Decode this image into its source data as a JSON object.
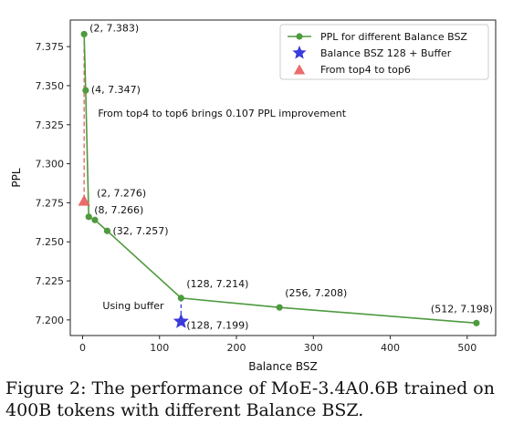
{
  "chart_data": {
    "type": "line",
    "xlabel": "Balance BSZ",
    "ylabel": "PPL",
    "xlim": [
      -16,
      537
    ],
    "ylim": [
      7.19,
      7.392
    ],
    "xticks": [
      0,
      100,
      200,
      300,
      400,
      500
    ],
    "xtick_labels": [
      "0",
      "100",
      "200",
      "300",
      "400",
      "500"
    ],
    "yticks": [
      7.2,
      7.225,
      7.25,
      7.275,
      7.3,
      7.325,
      7.35,
      7.375
    ],
    "ytick_labels": [
      "7.200",
      "7.225",
      "7.250",
      "7.275",
      "7.300",
      "7.325",
      "7.350",
      "7.375"
    ],
    "grid": false,
    "legend_position": "top-right",
    "colors": {
      "main": "#4e9a3e",
      "star": "#3b3bdb",
      "triangle": "#e85c5c",
      "star_link": "#3b3bdb",
      "triangle_link": "#e85c5c"
    },
    "series": [
      {
        "name": "PPL for different Balance BSZ",
        "marker": "circle",
        "x": [
          2,
          4,
          8,
          16,
          32,
          128,
          256,
          512
        ],
        "y": [
          7.383,
          7.347,
          7.266,
          7.264,
          7.257,
          7.214,
          7.208,
          7.198
        ],
        "point_labels": [
          "(2, 7.383)",
          "(4, 7.347)",
          "(8, 7.266)",
          "",
          "(32, 7.257)",
          "(128, 7.214)",
          "(256, 7.208)",
          "(512, 7.198)"
        ]
      },
      {
        "name": "Balance BSZ 128 + Buffer",
        "marker": "star",
        "x": [
          128
        ],
        "y": [
          7.199
        ],
        "point_labels": [
          "(128, 7.199)"
        ]
      },
      {
        "name": "From top4 to top6",
        "marker": "triangle",
        "x": [
          2
        ],
        "y": [
          7.276
        ],
        "point_labels": [
          "(2, 7.276)"
        ]
      }
    ],
    "annotations": [
      {
        "text": "From top4 to top6 brings 0.107 PPL improvement",
        "x": 20,
        "y": 7.33
      },
      {
        "text": "Using buffer",
        "x": 26,
        "y": 7.207
      }
    ]
  },
  "caption": "Figure 2: The performance of MoE-3.4A0.6B trained on 400B tokens with different Balance BSZ."
}
